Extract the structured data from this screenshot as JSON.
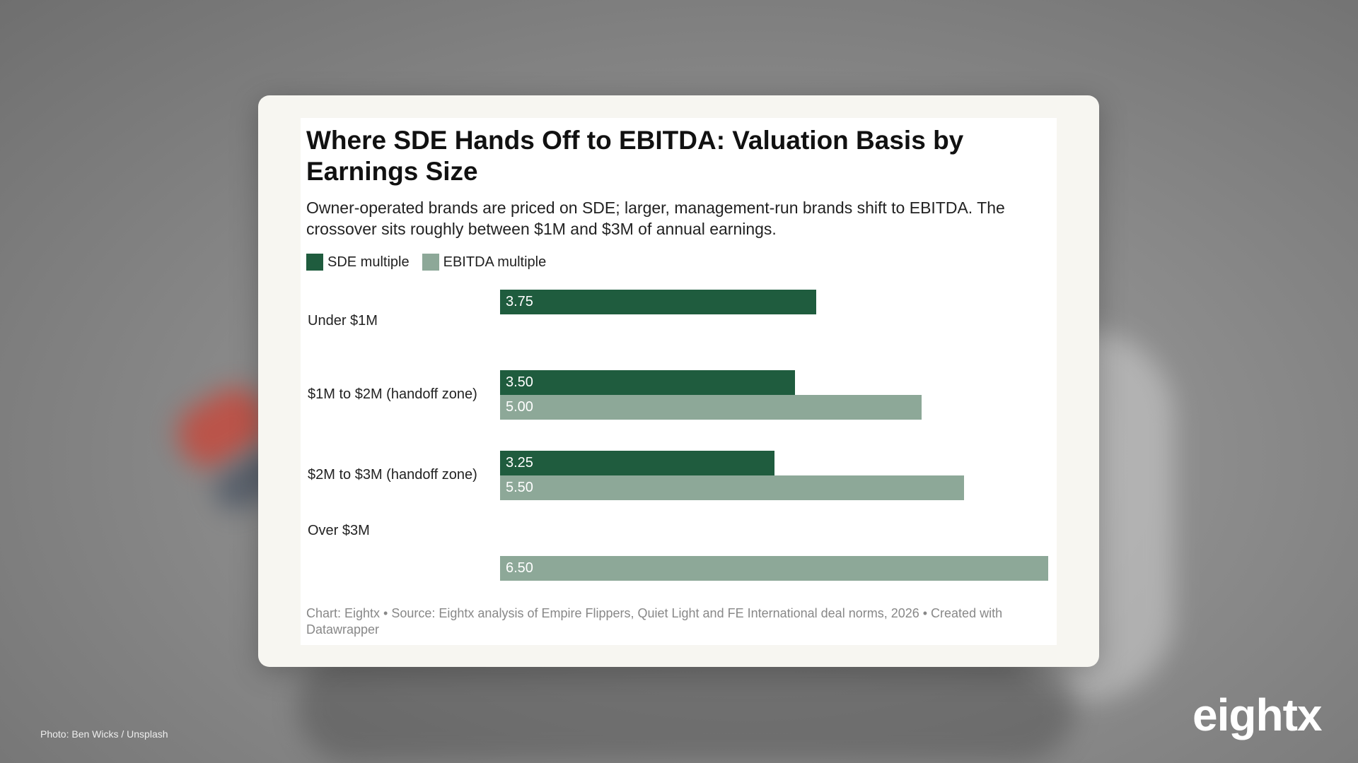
{
  "chart_data": {
    "type": "bar",
    "orientation": "horizontal",
    "title": "Where SDE Hands Off to EBITDA: Valuation Basis by Earnings Size",
    "subtitle": "Owner-operated brands are priced on SDE; larger, management-run brands shift to EBITDA. The crossover sits roughly between $1M and $3M of annual earnings.",
    "categories": [
      "Under $1M",
      "$1M to $2M (handoff zone)",
      "$2M to $3M (handoff zone)",
      "Over $3M"
    ],
    "series": [
      {
        "name": "SDE multiple",
        "color": "#1f5c3e",
        "values": [
          3.75,
          3.5,
          3.25,
          null
        ],
        "labels": [
          "3.75",
          "3.50",
          "3.25",
          ""
        ]
      },
      {
        "name": "EBITDA multiple",
        "color": "#8da898",
        "values": [
          null,
          5.0,
          5.5,
          6.5
        ],
        "labels": [
          "",
          "5.00",
          "5.50",
          "6.50"
        ]
      }
    ],
    "xlim": [
      0,
      6.5
    ],
    "grid": false,
    "legend": "top-left",
    "footer": "Chart: Eightx • Source: Eightx analysis of Empire Flippers, Quiet Light and FE International deal norms, 2026 • Created with Datawrapper"
  },
  "page": {
    "photo_credit": "Photo: Ben Wicks / Unsplash",
    "logo": "eightx"
  }
}
